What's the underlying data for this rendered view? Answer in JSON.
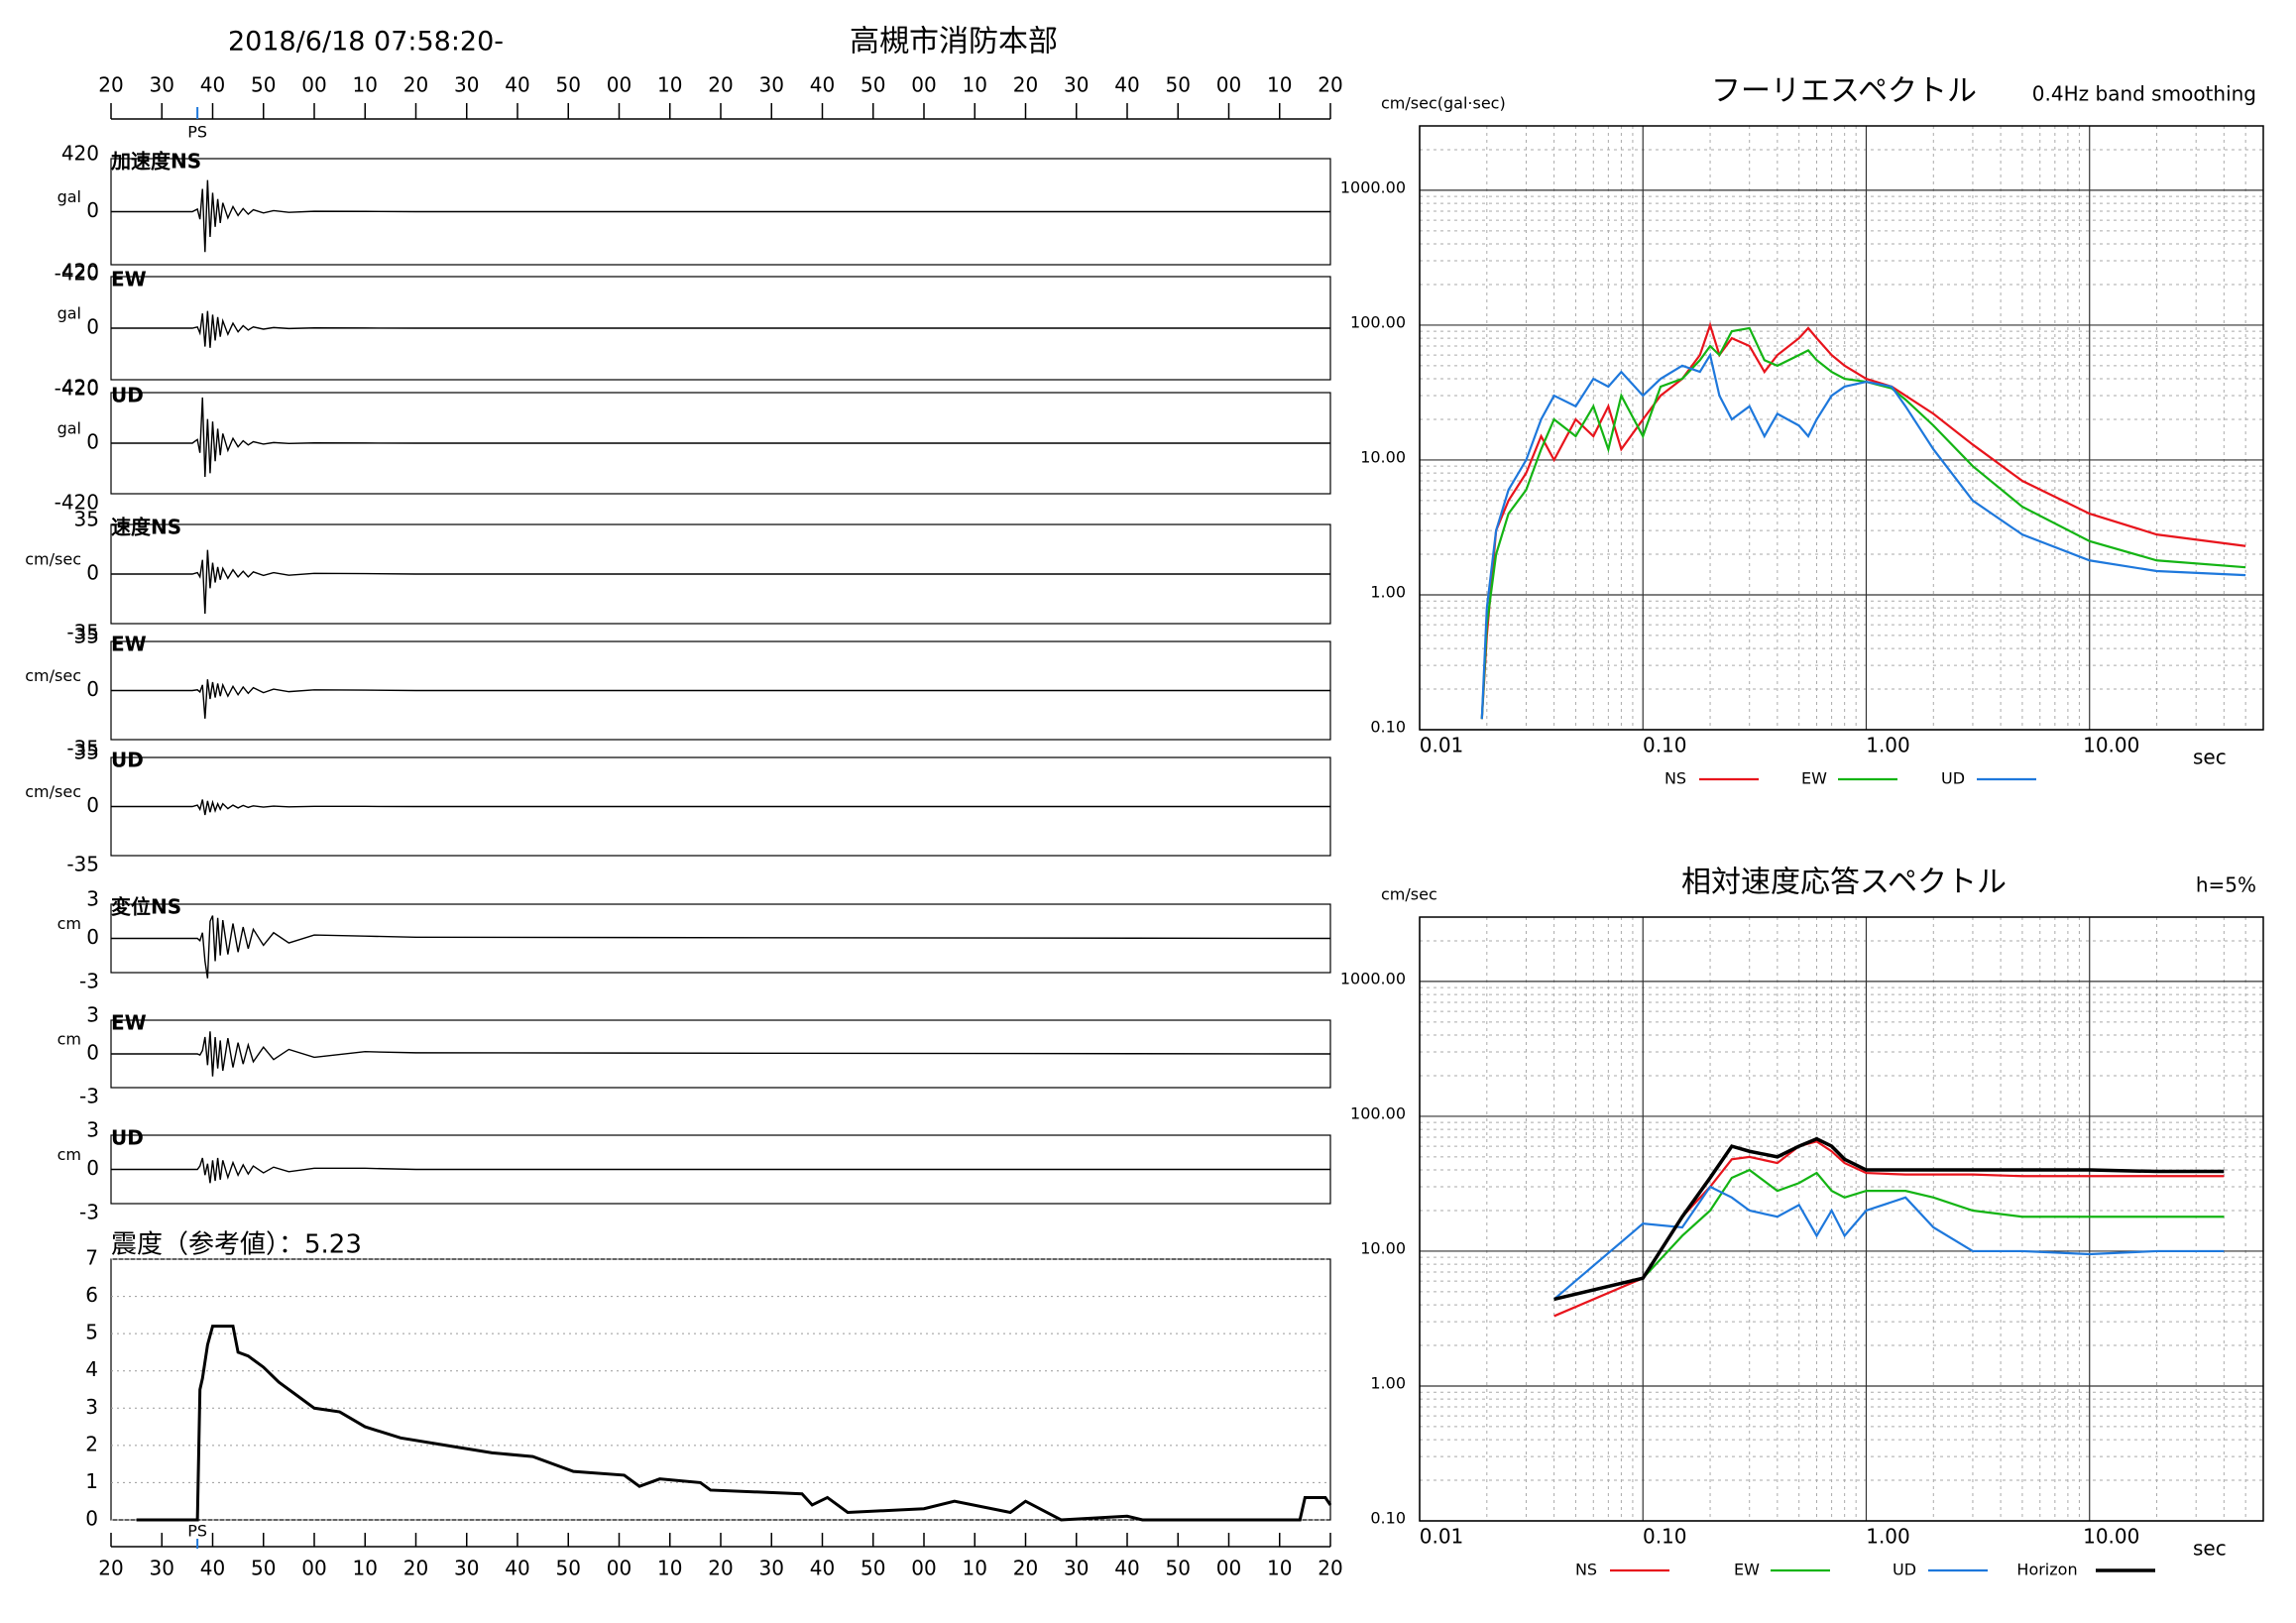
{
  "header": {
    "datetime": "2018/6/18 07:58:20-",
    "station": "高槻市消防本部"
  },
  "chart_data": [
    {
      "type": "waveform",
      "xlim": [
        0,
        240
      ],
      "xticks": [
        {
          "value": 0,
          "label": "20"
        },
        {
          "value": 10,
          "label": "30"
        },
        {
          "value": 20,
          "label": "40"
        },
        {
          "value": 30,
          "label": "50"
        },
        {
          "value": 40,
          "label": "00"
        },
        {
          "value": 50,
          "label": "10"
        },
        {
          "value": 60,
          "label": "20"
        },
        {
          "value": 70,
          "label": "30"
        },
        {
          "value": 80,
          "label": "40"
        },
        {
          "value": 90,
          "label": "50"
        },
        {
          "value": 100,
          "label": "00"
        },
        {
          "value": 110,
          "label": "10"
        },
        {
          "value": 120,
          "label": "20"
        },
        {
          "value": 130,
          "label": "30"
        },
        {
          "value": 140,
          "label": "40"
        },
        {
          "value": 150,
          "label": "50"
        },
        {
          "value": 160,
          "label": "00"
        },
        {
          "value": 170,
          "label": "10"
        },
        {
          "value": 180,
          "label": "20"
        },
        {
          "value": 190,
          "label": "30"
        },
        {
          "value": 200,
          "label": "40"
        },
        {
          "value": 210,
          "label": "50"
        },
        {
          "value": 220,
          "label": "00"
        },
        {
          "value": 230,
          "label": "10"
        },
        {
          "value": 240,
          "label": "20"
        }
      ],
      "ps_marker": {
        "x": 17,
        "label": "PS"
      },
      "x": [
        0,
        16,
        17,
        17.5,
        18,
        18.5,
        19,
        19.5,
        20,
        20.5,
        21,
        21.5,
        22,
        23,
        24,
        25,
        26,
        27,
        28,
        30,
        32,
        35,
        40,
        50,
        60,
        240
      ],
      "panels": [
        {
          "label": "加速度NS",
          "unit": "gal",
          "ylim": [
            -420,
            420
          ],
          "yticks": [
            -420,
            0,
            420
          ],
          "values": [
            0,
            0,
            20,
            -60,
            180,
            -320,
            250,
            -200,
            150,
            -120,
            100,
            -90,
            70,
            -50,
            40,
            -30,
            25,
            -20,
            15,
            -10,
            8,
            -5,
            3,
            2,
            0,
            0
          ]
        },
        {
          "label": "EW",
          "unit": "gal",
          "ylim": [
            -420,
            420
          ],
          "yticks": [
            -420,
            0,
            420
          ],
          "values": [
            0,
            0,
            10,
            -40,
            120,
            -150,
            140,
            -160,
            110,
            -100,
            90,
            -70,
            60,
            -50,
            40,
            -30,
            20,
            -15,
            10,
            -8,
            5,
            -3,
            2,
            1,
            0,
            0
          ]
        },
        {
          "label": "UD",
          "unit": "gal",
          "ylim": [
            -420,
            420
          ],
          "yticks": [
            -420,
            0,
            420
          ],
          "values": [
            0,
            0,
            30,
            -80,
            380,
            -280,
            200,
            -250,
            180,
            -150,
            120,
            -100,
            80,
            -60,
            40,
            -30,
            20,
            -15,
            12,
            -8,
            5,
            -3,
            2,
            1,
            0,
            0
          ]
        },
        {
          "label": "速度NS",
          "unit": "cm/sec",
          "ylim": [
            -35,
            35
          ],
          "yticks": [
            -35,
            0,
            35
          ],
          "values": [
            0,
            0,
            1,
            -2,
            10,
            -28,
            17,
            -10,
            8,
            -6,
            5,
            -4,
            4,
            -3,
            3,
            -2,
            2,
            -2,
            1.5,
            -1,
            1,
            -0.8,
            0.5,
            0.3,
            0,
            0
          ]
        },
        {
          "label": "EW",
          "unit": "cm/sec",
          "ylim": [
            -35,
            35
          ],
          "yticks": [
            -35,
            0,
            35
          ],
          "values": [
            0,
            0,
            0.5,
            -1,
            4,
            -20,
            8,
            -6,
            6,
            -5,
            5,
            -4,
            4,
            -4,
            3,
            -3,
            2.5,
            -2,
            2,
            -1.5,
            1,
            -0.8,
            0.5,
            0.3,
            0,
            0
          ]
        },
        {
          "label": "UD",
          "unit": "cm/sec",
          "ylim": [
            -35,
            35
          ],
          "yticks": [
            -35,
            0,
            35
          ],
          "values": [
            0,
            0,
            1,
            -2,
            5,
            -6,
            4,
            -4,
            3,
            -3,
            2,
            -2,
            2,
            -1.5,
            1,
            -1,
            0.8,
            -0.6,
            0.5,
            -0.4,
            0.3,
            -0.2,
            0.1,
            0.1,
            0,
            0
          ]
        },
        {
          "label": "変位NS",
          "unit": "cm",
          "ylim": [
            -3,
            3
          ],
          "yticks": [
            -3,
            0,
            3
          ],
          "values": [
            0,
            0,
            0,
            -0.2,
            0.5,
            -2,
            -3.5,
            1.5,
            2,
            -2,
            1.8,
            -1.5,
            1.6,
            -1.4,
            1.3,
            -1.2,
            1,
            -0.9,
            0.8,
            -0.6,
            0.5,
            -0.4,
            0.3,
            0.2,
            0.1,
            0
          ]
        },
        {
          "label": "EW",
          "unit": "cm",
          "ylim": [
            -3,
            3
          ],
          "yticks": [
            -3,
            0,
            3
          ],
          "values": [
            0,
            0,
            0,
            -0.1,
            0.3,
            1.5,
            -1,
            2,
            -2,
            1.5,
            -1.3,
            1.2,
            -1.5,
            1.4,
            -1.2,
            1,
            -0.9,
            0.8,
            -0.7,
            0.6,
            -0.5,
            0.4,
            -0.3,
            0.2,
            0.1,
            0
          ]
        },
        {
          "label": "UD",
          "unit": "cm",
          "ylim": [
            -3,
            3
          ],
          "yticks": [
            -3,
            0,
            3
          ],
          "values": [
            0,
            0,
            0,
            0.3,
            1,
            -0.5,
            0.5,
            -1.2,
            0.8,
            -1,
            1,
            -0.9,
            0.8,
            -0.7,
            0.6,
            -0.5,
            0.4,
            -0.4,
            0.3,
            -0.3,
            0.2,
            -0.2,
            0.1,
            0.1,
            0,
            0
          ]
        }
      ]
    },
    {
      "type": "line",
      "title": "震度（参考値）：5.23",
      "xlim": [
        0,
        240
      ],
      "xticks": [
        {
          "value": 0,
          "label": "20"
        },
        {
          "value": 10,
          "label": "30"
        },
        {
          "value": 20,
          "label": "40"
        },
        {
          "value": 30,
          "label": "50"
        },
        {
          "value": 40,
          "label": "00"
        },
        {
          "value": 50,
          "label": "10"
        },
        {
          "value": 60,
          "label": "20"
        },
        {
          "value": 70,
          "label": "30"
        },
        {
          "value": 80,
          "label": "40"
        },
        {
          "value": 90,
          "label": "50"
        },
        {
          "value": 100,
          "label": "00"
        },
        {
          "value": 110,
          "label": "10"
        },
        {
          "value": 120,
          "label": "20"
        },
        {
          "value": 130,
          "label": "30"
        },
        {
          "value": 140,
          "label": "40"
        },
        {
          "value": 150,
          "label": "50"
        },
        {
          "value": 160,
          "label": "00"
        },
        {
          "value": 170,
          "label": "10"
        },
        {
          "value": 180,
          "label": "20"
        },
        {
          "value": 190,
          "label": "30"
        },
        {
          "value": 200,
          "label": "40"
        },
        {
          "value": 210,
          "label": "50"
        },
        {
          "value": 220,
          "label": "00"
        },
        {
          "value": 230,
          "label": "10"
        },
        {
          "value": 240,
          "label": "20"
        }
      ],
      "ps_marker": {
        "x": 17,
        "label": "PS"
      },
      "ylim": [
        0,
        7
      ],
      "yticks": [
        0,
        1,
        2,
        3,
        4,
        5,
        6,
        7
      ],
      "grid": true,
      "color": "#000000",
      "x": [
        5,
        17,
        17.5,
        18,
        19,
        20,
        24,
        25,
        27,
        30,
        33,
        36,
        40,
        45,
        50,
        57,
        66,
        75,
        83,
        91,
        101,
        104,
        108,
        116,
        118,
        136,
        138,
        141,
        145,
        160,
        166,
        177,
        180,
        187,
        200,
        203,
        234,
        235,
        239,
        240
      ],
      "values": [
        0,
        0,
        3.5,
        3.8,
        4.7,
        5.2,
        5.2,
        4.5,
        4.4,
        4.1,
        3.7,
        3.4,
        3.0,
        2.9,
        2.5,
        2.2,
        2.0,
        1.8,
        1.7,
        1.3,
        1.2,
        0.9,
        1.1,
        1.0,
        0.8,
        0.7,
        0.4,
        0.6,
        0.2,
        0.3,
        0.5,
        0.2,
        0.5,
        0,
        0.1,
        0,
        0,
        0.6,
        0.6,
        0.4
      ]
    },
    {
      "type": "loglog",
      "title": "フーリエスペクトル",
      "subtitle": "0.4Hz band smoothing",
      "ylabel": "cm/sec(gal·sec)",
      "xlabel": "sec",
      "log_scale": true,
      "grid": true,
      "xlim": [
        0.01,
        60
      ],
      "ylim": [
        0.1,
        3000
      ],
      "xticks": [
        {
          "value": 0.01,
          "label": "0.01"
        },
        {
          "value": 0.1,
          "label": "0.10"
        },
        {
          "value": 1,
          "label": "1.00"
        },
        {
          "value": 10,
          "label": "10.00"
        }
      ],
      "yticks": [
        {
          "value": 0.1,
          "label": "0.10"
        },
        {
          "value": 1,
          "label": "1.00"
        },
        {
          "value": 10,
          "label": "10.00"
        },
        {
          "value": 100,
          "label": "100.00"
        },
        {
          "value": 1000,
          "label": "1000.00"
        }
      ],
      "x": [
        0.019,
        0.02,
        0.022,
        0.025,
        0.03,
        0.035,
        0.04,
        0.05,
        0.06,
        0.07,
        0.08,
        0.1,
        0.12,
        0.15,
        0.18,
        0.2,
        0.22,
        0.25,
        0.3,
        0.35,
        0.4,
        0.5,
        0.55,
        0.6,
        0.7,
        0.8,
        1,
        1.3,
        1.5,
        2,
        3,
        5,
        10,
        20,
        50
      ],
      "series": [
        {
          "name": "NS",
          "color": "#e8141c",
          "values": [
            0.12,
            0.5,
            3,
            5,
            8,
            15,
            10,
            20,
            15,
            25,
            12,
            20,
            30,
            40,
            60,
            100,
            60,
            80,
            70,
            45,
            60,
            80,
            95,
            80,
            60,
            50,
            40,
            35,
            30,
            22,
            13,
            7,
            4,
            2.8,
            2.3
          ]
        },
        {
          "name": "EW",
          "color": "#14b414",
          "values": [
            0.12,
            0.6,
            2,
            4,
            6,
            12,
            20,
            15,
            25,
            12,
            30,
            15,
            35,
            40,
            55,
            70,
            60,
            90,
            95,
            55,
            50,
            60,
            65,
            55,
            45,
            40,
            38,
            34,
            28,
            18,
            9,
            4.5,
            2.5,
            1.8,
            1.6
          ]
        },
        {
          "name": "UD",
          "color": "#1e78dc",
          "values": [
            0.12,
            0.8,
            3,
            6,
            10,
            20,
            30,
            25,
            40,
            35,
            45,
            30,
            40,
            50,
            45,
            60,
            30,
            20,
            25,
            15,
            22,
            18,
            15,
            20,
            30,
            35,
            38,
            35,
            25,
            12,
            5,
            2.8,
            1.8,
            1.5,
            1.4
          ]
        }
      ]
    },
    {
      "type": "loglog",
      "title": "相対速度応答スペクトル",
      "subtitle": "h=5%",
      "ylabel": "cm/sec",
      "xlabel": "sec",
      "log_scale": true,
      "grid": true,
      "xlim": [
        0.01,
        60
      ],
      "ylim": [
        0.1,
        3000
      ],
      "xticks": [
        {
          "value": 0.01,
          "label": "0.01"
        },
        {
          "value": 0.1,
          "label": "0.10"
        },
        {
          "value": 1,
          "label": "1.00"
        },
        {
          "value": 10,
          "label": "10.00"
        }
      ],
      "yticks": [
        {
          "value": 0.1,
          "label": "0.10"
        },
        {
          "value": 1,
          "label": "1.00"
        },
        {
          "value": 10,
          "label": "10.00"
        },
        {
          "value": 100,
          "label": "100.00"
        },
        {
          "value": 1000,
          "label": "1000.00"
        }
      ],
      "x": [
        0.04,
        0.1,
        0.15,
        0.2,
        0.25,
        0.3,
        0.4,
        0.5,
        0.6,
        0.7,
        0.8,
        1,
        1.5,
        2,
        3,
        5,
        10,
        20,
        40
      ],
      "series": [
        {
          "name": "NS",
          "color": "#e8141c",
          "values": [
            3.3,
            6.3,
            18,
            30,
            48,
            50,
            45,
            60,
            65,
            55,
            45,
            38,
            37,
            37,
            37,
            36,
            36,
            36,
            36
          ]
        },
        {
          "name": "EW",
          "color": "#14b414",
          "values": [
            4.4,
            6.3,
            13,
            20,
            35,
            40,
            28,
            32,
            38,
            28,
            25,
            28,
            28,
            25,
            20,
            18,
            18,
            18,
            18
          ]
        },
        {
          "name": "UD",
          "color": "#1e78dc",
          "values": [
            4.4,
            16,
            15,
            30,
            25,
            20,
            18,
            22,
            13,
            20,
            13,
            20,
            25,
            15,
            10,
            10,
            9.5,
            10,
            10
          ]
        },
        {
          "name": "Horizon",
          "color": "#000000",
          "values": [
            4.4,
            6.3,
            18,
            35,
            60,
            55,
            50,
            60,
            68,
            60,
            48,
            40,
            40,
            40,
            40,
            40,
            40,
            39,
            39
          ]
        }
      ]
    }
  ]
}
